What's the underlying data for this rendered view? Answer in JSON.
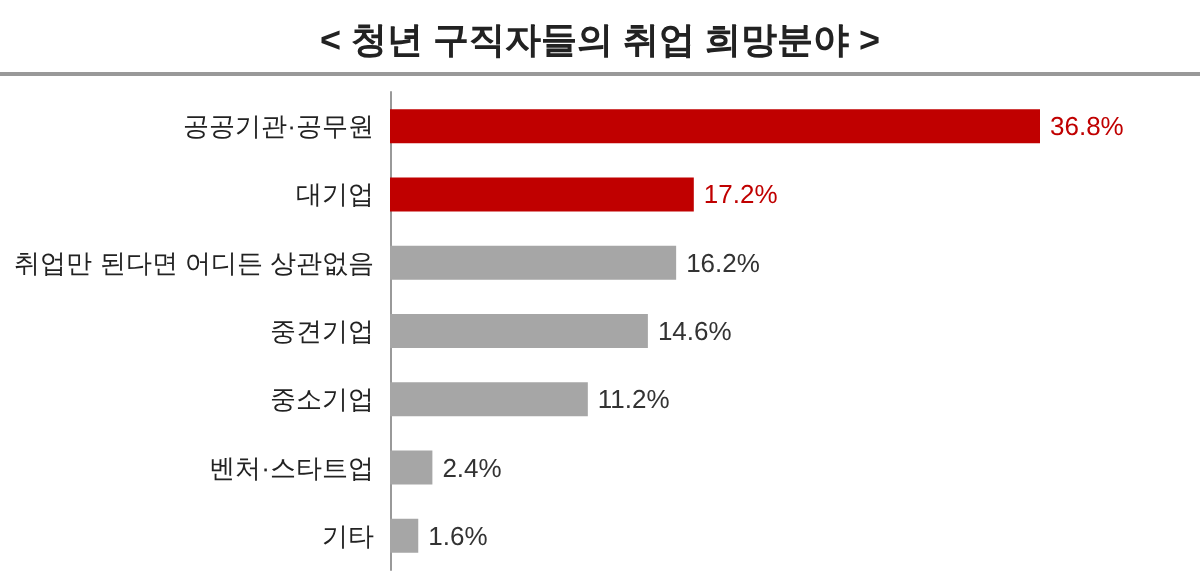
{
  "chart_data": {
    "type": "bar",
    "orientation": "horizontal",
    "title": "< 청년 구직자들의 취업 희망분야 >",
    "categories": [
      "공공기관·공무원",
      "대기업",
      "취업만 된다면 어디든 상관없음",
      "중견기업",
      "중소기업",
      "벤처·스타트업",
      "기타"
    ],
    "values": [
      36.8,
      17.2,
      16.2,
      14.6,
      11.2,
      2.4,
      1.6
    ],
    "value_labels": [
      "36.8%",
      "17.2%",
      "16.2%",
      "14.6%",
      "11.2%",
      "2.4%",
      "1.6%"
    ],
    "colors": [
      "#c00000",
      "#c00000",
      "#a6a6a6",
      "#a6a6a6",
      "#a6a6a6",
      "#a6a6a6",
      "#a6a6a6"
    ]
  }
}
